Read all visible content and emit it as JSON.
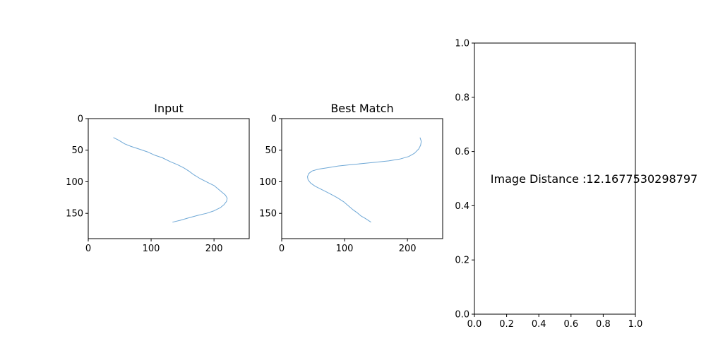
{
  "chart_data": [
    {
      "type": "line",
      "title": "Input",
      "xlabel": "",
      "ylabel": "",
      "xlim": [
        0,
        256
      ],
      "ylim": [
        190,
        0
      ],
      "xticks": [
        0,
        100,
        200
      ],
      "yticks": [
        0,
        50,
        100,
        150
      ],
      "color": "#6fa8d6",
      "series": [
        {
          "name": "Input",
          "x": [
            40,
            48,
            58,
            68,
            80,
            95,
            106,
            118,
            130,
            142,
            152,
            160,
            168,
            178,
            190,
            200,
            206,
            212,
            218,
            221,
            220,
            216,
            210,
            200,
            188,
            175,
            160,
            146,
            134
          ],
          "y": [
            30,
            34,
            40,
            44,
            48,
            53,
            58,
            62,
            68,
            73,
            78,
            83,
            89,
            95,
            101,
            106,
            111,
            116,
            121,
            126,
            131,
            136,
            141,
            146,
            150,
            153,
            157,
            161,
            164
          ]
        }
      ]
    },
    {
      "type": "line",
      "title": "Best Match",
      "xlabel": "",
      "ylabel": "",
      "xlim": [
        0,
        256
      ],
      "ylim": [
        190,
        0
      ],
      "xticks": [
        0,
        100,
        200
      ],
      "yticks": [
        0,
        50,
        100,
        150
      ],
      "color": "#6fa8d6",
      "series": [
        {
          "name": "Best Match",
          "x": [
            220,
            222,
            221,
            218,
            211,
            202,
            188,
            170,
            150,
            130,
            110,
            90,
            72,
            58,
            48,
            43,
            41,
            42,
            46,
            53,
            63,
            75,
            88,
            99,
            106,
            113,
            120,
            126,
            133,
            142
          ],
          "y": [
            30,
            36,
            42,
            48,
            55,
            60,
            64,
            67,
            69,
            71,
            73,
            75,
            78,
            80,
            83,
            87,
            92,
            97,
            102,
            107,
            112,
            118,
            125,
            132,
            138,
            144,
            149,
            154,
            158,
            164
          ]
        }
      ]
    },
    {
      "type": "scatter",
      "title": "",
      "xlabel": "",
      "ylabel": "",
      "xlim": [
        0,
        1
      ],
      "ylim": [
        0,
        1
      ],
      "xticks": [
        0.0,
        0.2,
        0.4,
        0.6,
        0.8,
        1.0
      ],
      "yticks": [
        0.0,
        0.2,
        0.4,
        0.6,
        0.8,
        1.0
      ],
      "xtick_labels": [
        "0.0",
        "0.2",
        "0.4",
        "0.6",
        "0.8",
        "1.0"
      ],
      "ytick_labels": [
        "0.0",
        "0.2",
        "0.4",
        "0.6",
        "0.8",
        "1.0"
      ],
      "annotations": [
        {
          "text": "Image Distance :12.1677530298797",
          "x": 0.1,
          "y": 0.5
        }
      ]
    }
  ]
}
